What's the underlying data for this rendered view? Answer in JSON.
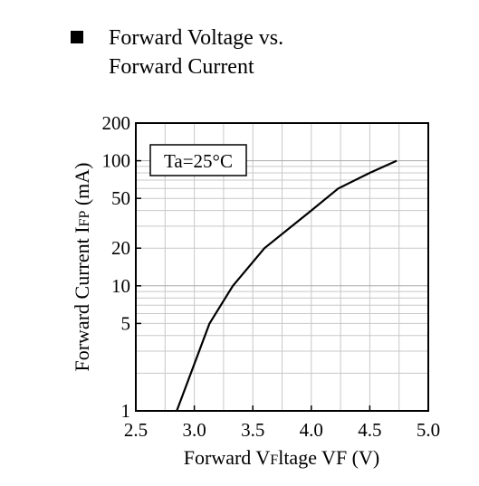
{
  "heading": {
    "bullet_icon": "black-square-icon",
    "title_lines": [
      "Forward Voltage vs.",
      "Forward Current"
    ]
  },
  "chart_data": {
    "type": "line",
    "title": "Forward Voltage vs. Forward Current",
    "xlabel": "Forward Voltage  VF (V)",
    "ylabel": "Forward Current  IFP (mA)",
    "xlim": [
      2.5,
      5.0
    ],
    "ylim": [
      1,
      200
    ],
    "y_scale": "log",
    "x_ticks": [
      2.5,
      3.0,
      3.5,
      4.0,
      4.5,
      5.0
    ],
    "x_tick_labels": [
      "2.5",
      "3.0",
      "3.5",
      "4.0",
      "4.5",
      "5.0"
    ],
    "y_ticks": [
      1,
      5,
      10,
      20,
      50,
      100,
      200
    ],
    "y_tick_labels": [
      "1",
      "5",
      "10",
      "20",
      "50",
      "100",
      "200"
    ],
    "grid": true,
    "annotation": "Ta=25°C",
    "series": [
      {
        "x": [
          2.85,
          3.13,
          3.33,
          3.6,
          4.0,
          4.23,
          4.5,
          4.73
        ],
        "y": [
          1,
          5,
          10,
          20,
          40,
          60,
          80,
          100
        ]
      }
    ],
    "line_color": "#000000",
    "grid_color": "#c8c8c8"
  }
}
